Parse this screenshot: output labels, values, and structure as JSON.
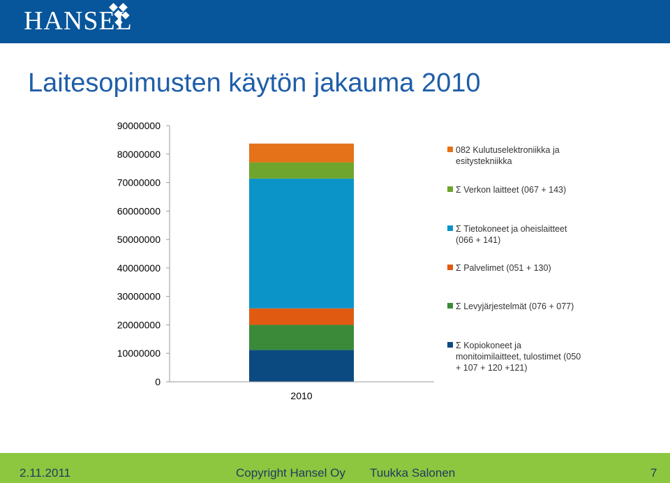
{
  "header": {
    "logo_text": "HANSEL",
    "brand_color": "#07559a"
  },
  "slide": {
    "title": "Laitesopimusten käytön jakauma 2010"
  },
  "chart_data": {
    "type": "bar",
    "stacked": true,
    "title": "",
    "xlabel": "",
    "ylabel": "",
    "categories": [
      "2010"
    ],
    "ylim": [
      0,
      90000000
    ],
    "yticks": [
      "90000000",
      "80000000",
      "70000000",
      "60000000",
      "50000000",
      "40000000",
      "30000000",
      "20000000",
      "10000000",
      "0"
    ],
    "legend_position": "right",
    "grid": false,
    "series": [
      {
        "name": "Σ Kopiokoneet ja monitoimilaitteet, tulostimet (050 + 107 + 120 +121)",
        "legend_lines": [
          "Σ Kopiokoneet ja",
          "monitoimilaitteet, tulostimet (050",
          "+ 107 + 120 +121)"
        ],
        "color": "#0b4a80",
        "values": [
          11200000
        ]
      },
      {
        "name": "Σ Levyjärjestelmät (076 + 077)",
        "legend_lines": [
          "Σ Levyjärjestelmät (076 + 077)"
        ],
        "color": "#3a8a3a",
        "values": [
          8800000
        ]
      },
      {
        "name": "Σ Palvelimet (051 + 130)",
        "legend_lines": [
          "Σ Palvelimet (051 + 130)"
        ],
        "color": "#e05a12",
        "values": [
          5800000
        ]
      },
      {
        "name": "Σ Tietokoneet ja oheislaitteet (066 + 141)",
        "legend_lines": [
          "Σ Tietokoneet ja oheislaitteet",
          "(066 + 141)"
        ],
        "color": "#0b94c8",
        "values": [
          45600000
        ]
      },
      {
        "name": "Σ Verkon laitteet (067 + 143)",
        "legend_lines": [
          "Σ Verkon laitteet (067 + 143)"
        ],
        "color": "#6fa52c",
        "values": [
          5700000
        ]
      },
      {
        "name": "082 Kulutuselektroniikka ja esitystekniikka",
        "legend_lines": [
          "082 Kulutuselektroniikka ja",
          "esitystekniikka"
        ],
        "color": "#e57118",
        "values": [
          6600000
        ]
      }
    ]
  },
  "footer": {
    "date": "2.11.2011",
    "copyright": "Copyright Hansel Oy",
    "author": "Tuukka Salonen",
    "page": "7"
  }
}
